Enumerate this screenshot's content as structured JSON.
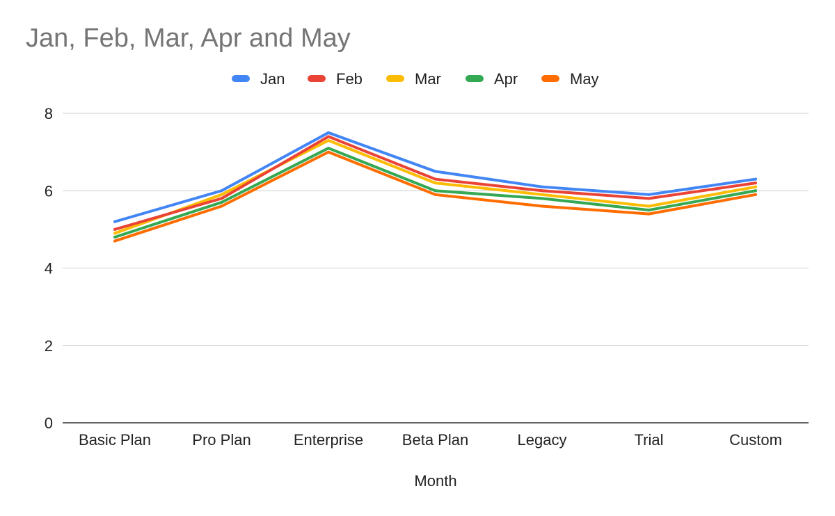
{
  "chart_data": {
    "type": "line",
    "title": "Jan, Feb, Mar, Apr and May",
    "xlabel": "Month",
    "ylabel": "",
    "categories": [
      "Basic Plan",
      "Pro Plan",
      "Enterprise",
      "Beta Plan",
      "Legacy",
      "Trial",
      "Custom"
    ],
    "ylim": [
      0,
      8
    ],
    "yticks": [
      0,
      2,
      4,
      6,
      8
    ],
    "grid": true,
    "legend_position": "top",
    "series": [
      {
        "name": "Jan",
        "color": "#4285F4",
        "values": [
          5.2,
          6.0,
          7.5,
          6.5,
          6.1,
          5.9,
          6.3
        ]
      },
      {
        "name": "Feb",
        "color": "#EA4335",
        "values": [
          5.0,
          5.8,
          7.4,
          6.3,
          6.0,
          5.8,
          6.2
        ]
      },
      {
        "name": "Mar",
        "color": "#FBBC04",
        "values": [
          4.9,
          5.9,
          7.3,
          6.2,
          5.9,
          5.6,
          6.1
        ]
      },
      {
        "name": "Apr",
        "color": "#34A853",
        "values": [
          4.8,
          5.7,
          7.1,
          6.0,
          5.8,
          5.5,
          6.0
        ]
      },
      {
        "name": "May",
        "color": "#FF6D01",
        "values": [
          4.7,
          5.6,
          7.0,
          5.9,
          5.6,
          5.4,
          5.9
        ]
      }
    ]
  }
}
